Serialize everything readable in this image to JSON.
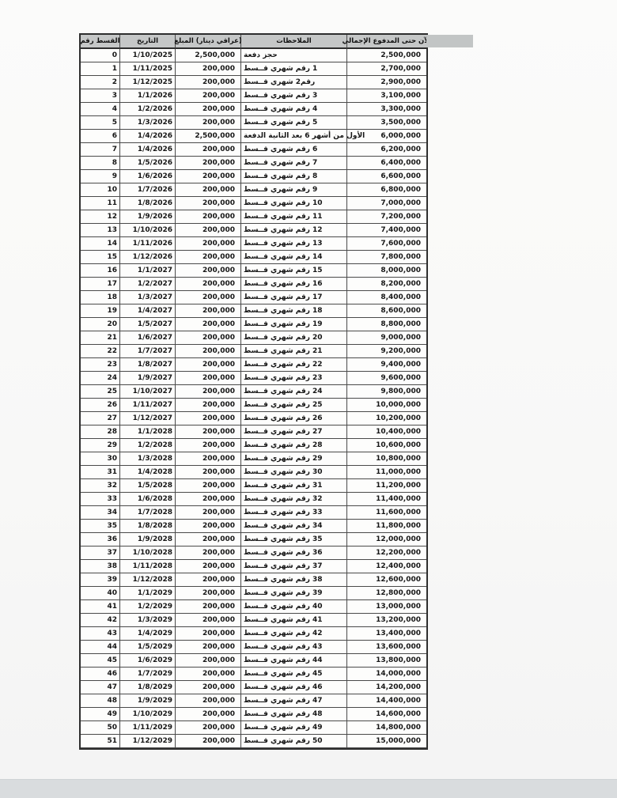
{
  "table": {
    "headers": [
      "رقم‎ القسط",
      "التاريخ",
      "المبلغ‎ (دينار‎ عراقي)",
      "الملاحظات",
      "الإجمالي‎ المدفوع‎ حتى‎ الآن"
    ],
    "rows": [
      [
        "0",
        "1/10/2025",
        "2,500,000",
        "دفعة‎ حجز",
        "2,500,000"
      ],
      [
        "1",
        "1/11/2025",
        "200,000",
        "قــسط‎ شهري‎ رقم‎ 1",
        "2,700,000"
      ],
      [
        "2",
        "1/12/2025",
        "200,000",
        "قــسط‎ شهري‎ رقم2",
        "2,900,000"
      ],
      [
        "3",
        "1/1/2026",
        "200,000",
        "قــسط‎ شهري‎ رقم‎ 3",
        "3,100,000"
      ],
      [
        "4",
        "1/2/2026",
        "200,000",
        "قــسط‎ شهري‎ رقم‎ 4",
        "3,300,000"
      ],
      [
        "5",
        "1/3/2026",
        "200,000",
        "قــسط‎ شهري‎ رقم‎ 5",
        "3,500,000"
      ],
      [
        "6",
        "1/4/2026",
        "2,500,000",
        "الدفعة‎ الثانية‎ بعد‎ 6 أشهر‎ من‎ الأول",
        "6,000,000"
      ],
      [
        "7",
        "1/4/2026",
        "200,000",
        "قــسط‎ شهري‎ رقم‎ 6",
        "6,200,000"
      ],
      [
        "8",
        "1/5/2026",
        "200,000",
        "قــسط‎ شهري‎ رقم‎ 7",
        "6,400,000"
      ],
      [
        "9",
        "1/6/2026",
        "200,000",
        "قــسط‎ شهري‎ رقم‎ 8",
        "6,600,000"
      ],
      [
        "10",
        "1/7/2026",
        "200,000",
        "قــسط‎ شهري‎ رقم‎ 9",
        "6,800,000"
      ],
      [
        "11",
        "1/8/2026",
        "200,000",
        "قــسط‎ شهري‎ رقم‎ 10",
        "7,000,000"
      ],
      [
        "12",
        "1/9/2026",
        "200,000",
        "قــسط‎ شهري‎ رقم‎ 11",
        "7,200,000"
      ],
      [
        "13",
        "1/10/2026",
        "200,000",
        "قــسط‎ شهري‎ رقم‎ 12",
        "7,400,000"
      ],
      [
        "14",
        "1/11/2026",
        "200,000",
        "قــسط‎ شهري‎ رقم‎ 13",
        "7,600,000"
      ],
      [
        "15",
        "1/12/2026",
        "200,000",
        "قــسط‎ شهري‎ رقم‎ 14",
        "7,800,000"
      ],
      [
        "16",
        "1/1/2027",
        "200,000",
        "قــسط‎ شهري‎ رقم‎ 15",
        "8,000,000"
      ],
      [
        "17",
        "1/2/2027",
        "200,000",
        "قــسط‎ شهري‎ رقم‎ 16",
        "8,200,000"
      ],
      [
        "18",
        "1/3/2027",
        "200,000",
        "قــسط‎ شهري‎ رقم‎ 17",
        "8,400,000"
      ],
      [
        "19",
        "1/4/2027",
        "200,000",
        "قــسط‎ شهري‎ رقم‎ 18",
        "8,600,000"
      ],
      [
        "20",
        "1/5/2027",
        "200,000",
        "قــسط‎ شهري‎ رقم‎ 19",
        "8,800,000"
      ],
      [
        "21",
        "1/6/2027",
        "200,000",
        "قــسط‎ شهري‎ رقم‎ 20",
        "9,000,000"
      ],
      [
        "22",
        "1/7/2027",
        "200,000",
        "قــسط‎ شهري‎ رقم‎ 21",
        "9,200,000"
      ],
      [
        "23",
        "1/8/2027",
        "200,000",
        "قــسط‎ شهري‎ رقم‎ 22",
        "9,400,000"
      ],
      [
        "24",
        "1/9/2027",
        "200,000",
        "قــسط‎ شهري‎ رقم‎ 23",
        "9,600,000"
      ],
      [
        "25",
        "1/10/2027",
        "200,000",
        "قــسط‎ شهري‎ رقم‎ 24",
        "9,800,000"
      ],
      [
        "26",
        "1/11/2027",
        "200,000",
        "قــسط‎ شهري‎ رقم‎ 25",
        "10,000,000"
      ],
      [
        "27",
        "1/12/2027",
        "200,000",
        "قــسط‎ شهري‎ رقم‎ 26",
        "10,200,000"
      ],
      [
        "28",
        "1/1/2028",
        "200,000",
        "قــسط‎ شهري‎ رقم‎ 27",
        "10,400,000"
      ],
      [
        "29",
        "1/2/2028",
        "200,000",
        "قــسط‎ شهري‎ رقم‎ 28",
        "10,600,000"
      ],
      [
        "30",
        "1/3/2028",
        "200,000",
        "قــسط‎ شهري‎ رقم‎ 29",
        "10,800,000"
      ],
      [
        "31",
        "1/4/2028",
        "200,000",
        "قــسط‎ شهري‎ رقم‎ 30",
        "11,000,000"
      ],
      [
        "32",
        "1/5/2028",
        "200,000",
        "قــسط‎ شهري‎ رقم‎ 31",
        "11,200,000"
      ],
      [
        "33",
        "1/6/2028",
        "200,000",
        "قــسط‎ شهري‎ رقم‎ 32",
        "11,400,000"
      ],
      [
        "34",
        "1/7/2028",
        "200,000",
        "قــسط‎ شهري‎ رقم‎ 33",
        "11,600,000"
      ],
      [
        "35",
        "1/8/2028",
        "200,000",
        "قــسط‎ شهري‎ رقم‎ 34",
        "11,800,000"
      ],
      [
        "36",
        "1/9/2028",
        "200,000",
        "قــسط‎ شهري‎ رقم‎ 35",
        "12,000,000"
      ],
      [
        "37",
        "1/10/2028",
        "200,000",
        "قــسط‎ شهري‎ رقم‎ 36",
        "12,200,000"
      ],
      [
        "38",
        "1/11/2028",
        "200,000",
        "قــسط‎ شهري‎ رقم‎ 37",
        "12,400,000"
      ],
      [
        "39",
        "1/12/2028",
        "200,000",
        "قــسط‎ شهري‎ رقم‎ 38",
        "12,600,000"
      ],
      [
        "40",
        "1/1/2029",
        "200,000",
        "قــسط‎ شهري‎ رقم‎ 39",
        "12,800,000"
      ],
      [
        "41",
        "1/2/2029",
        "200,000",
        "قــسط‎ شهري‎ رقم‎ 40",
        "13,000,000"
      ],
      [
        "42",
        "1/3/2029",
        "200,000",
        "قــسط‎ شهري‎ رقم‎ 41",
        "13,200,000"
      ],
      [
        "43",
        "1/4/2029",
        "200,000",
        "قــسط‎ شهري‎ رقم‎ 42",
        "13,400,000"
      ],
      [
        "44",
        "1/5/2029",
        "200,000",
        "قــسط‎ شهري‎ رقم‎ 43",
        "13,600,000"
      ],
      [
        "45",
        "1/6/2029",
        "200,000",
        "قــسط‎ شهري‎ رقم‎ 44",
        "13,800,000"
      ],
      [
        "46",
        "1/7/2029",
        "200,000",
        "قــسط‎ شهري‎ رقم‎ 45",
        "14,000,000"
      ],
      [
        "47",
        "1/8/2029",
        "200,000",
        "قــسط‎ شهري‎ رقم‎ 46",
        "14,200,000"
      ],
      [
        "48",
        "1/9/2029",
        "200,000",
        "قــسط‎ شهري‎ رقم‎ 47",
        "14,400,000"
      ],
      [
        "49",
        "1/10/2029",
        "200,000",
        "قــسط‎ شهري‎ رقم‎ 48",
        "14,600,000"
      ],
      [
        "50",
        "1/11/2029",
        "200,000",
        "قــسط‎ شهري‎ رقم‎ 49",
        "14,800,000"
      ],
      [
        "51",
        "1/12/2029",
        "200,000",
        "قــسط‎ شهري‎ رقم‎ 50",
        "15,000,000"
      ]
    ],
    "colors": {
      "header_fill": "#c5c7c7",
      "border": "#4a4a4a",
      "text": "#161616",
      "bottom_strip": "#d9dcde"
    }
  }
}
